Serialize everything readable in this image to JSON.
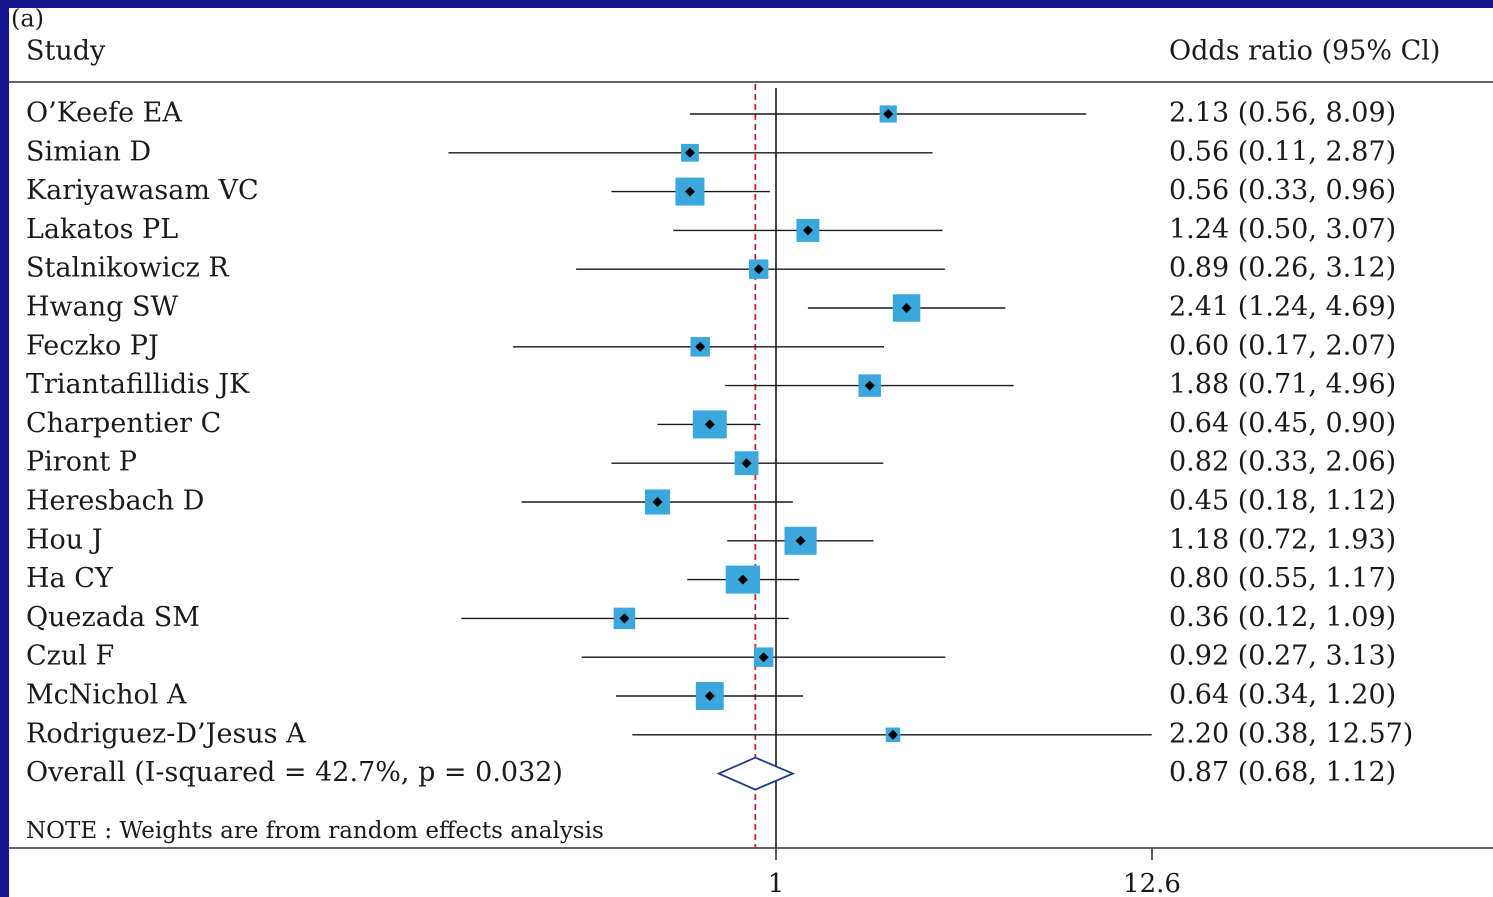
{
  "chart_data": {
    "type": "forest",
    "panel_label": "(a)",
    "header_left": "Study",
    "header_right": "Odds ratio (95% Cl)",
    "x_scale": "log",
    "reference_line": 1,
    "overall_dashed_line": 0.87,
    "x_ticks": [
      {
        "value": 1,
        "label": "1"
      },
      {
        "value": 12.6,
        "label": "12.6"
      }
    ],
    "studies": [
      {
        "name": "O’Keefe EA",
        "or": 2.13,
        "lo": 0.56,
        "hi": 8.09,
        "ci_text": "2.13 (0.56, 8.09)",
        "weight": 1.4
      },
      {
        "name": "Simian D",
        "or": 0.56,
        "lo": 0.11,
        "hi": 2.87,
        "ci_text": "0.56 (0.11, 2.87)",
        "weight": 1.5
      },
      {
        "name": "Kariyawasam VC",
        "or": 0.56,
        "lo": 0.33,
        "hi": 0.96,
        "ci_text": "0.56 (0.33, 0.96)",
        "weight": 4.0
      },
      {
        "name": "Lakatos PL",
        "or": 1.24,
        "lo": 0.5,
        "hi": 3.07,
        "ci_text": "1.24 (0.50, 3.07)",
        "weight": 2.5
      },
      {
        "name": "Stalnikowicz R",
        "or": 0.89,
        "lo": 0.26,
        "hi": 3.12,
        "ci_text": "0.89 (0.26, 3.12)",
        "weight": 1.8
      },
      {
        "name": "Hwang SW",
        "or": 2.41,
        "lo": 1.24,
        "hi": 4.69,
        "ci_text": "2.41 (1.24, 4.69)",
        "weight": 3.6
      },
      {
        "name": "Feczko PJ",
        "or": 0.6,
        "lo": 0.17,
        "hi": 2.07,
        "ci_text": "0.60 (0.17, 2.07)",
        "weight": 1.8
      },
      {
        "name": "Triantafillidis JK",
        "or": 1.88,
        "lo": 0.71,
        "hi": 4.96,
        "ci_text": "1.88 (0.71, 4.96)",
        "weight": 2.4
      },
      {
        "name": "Charpentier C",
        "or": 0.64,
        "lo": 0.45,
        "hi": 0.9,
        "ci_text": "0.64 (0.45, 0.90)",
        "weight": 5.5
      },
      {
        "name": "Piront P",
        "or": 0.82,
        "lo": 0.33,
        "hi": 2.06,
        "ci_text": "0.82 (0.33, 2.06)",
        "weight": 2.7
      },
      {
        "name": "Heresbach D",
        "or": 0.45,
        "lo": 0.18,
        "hi": 1.12,
        "ci_text": "0.45 (0.18, 1.12)",
        "weight": 3.0
      },
      {
        "name": "Hou J",
        "or": 1.18,
        "lo": 0.72,
        "hi": 1.93,
        "ci_text": "1.18 (0.72, 1.93)",
        "weight": 4.9
      },
      {
        "name": "Ha CY",
        "or": 0.8,
        "lo": 0.55,
        "hi": 1.17,
        "ci_text": "0.80 (0.55, 1.17)",
        "weight": 5.6
      },
      {
        "name": "Quezada SM",
        "or": 0.36,
        "lo": 0.12,
        "hi": 1.09,
        "ci_text": "0.36 (0.12, 1.09)",
        "weight": 2.2
      },
      {
        "name": "Czul F",
        "or": 0.92,
        "lo": 0.27,
        "hi": 3.13,
        "ci_text": "0.92 (0.27, 3.13)",
        "weight": 1.8
      },
      {
        "name": "McNichol A",
        "or": 0.64,
        "lo": 0.34,
        "hi": 1.2,
        "ci_text": "0.64 (0.34, 1.20)",
        "weight": 3.7
      },
      {
        "name": "Rodriguez-D’Jesus A",
        "or": 2.2,
        "lo": 0.38,
        "hi": 12.57,
        "ci_text": "2.20 (0.38, 12.57)",
        "weight": 1.0
      }
    ],
    "overall": {
      "label": "Overall (I-squared = 42.7%, p = 0.032)",
      "or": 0.87,
      "lo": 0.68,
      "hi": 1.12,
      "ci_text": "0.87 (0.68, 1.12)"
    },
    "note": "NOTE : Weights are from random effects analysis",
    "colors": {
      "frame": "#15148c",
      "box": "#3aa8dd",
      "point": "#000000",
      "ci_line": "#1a1a1a",
      "diamond": "#1d3f86",
      "dashed_line": "#cc2233"
    }
  }
}
